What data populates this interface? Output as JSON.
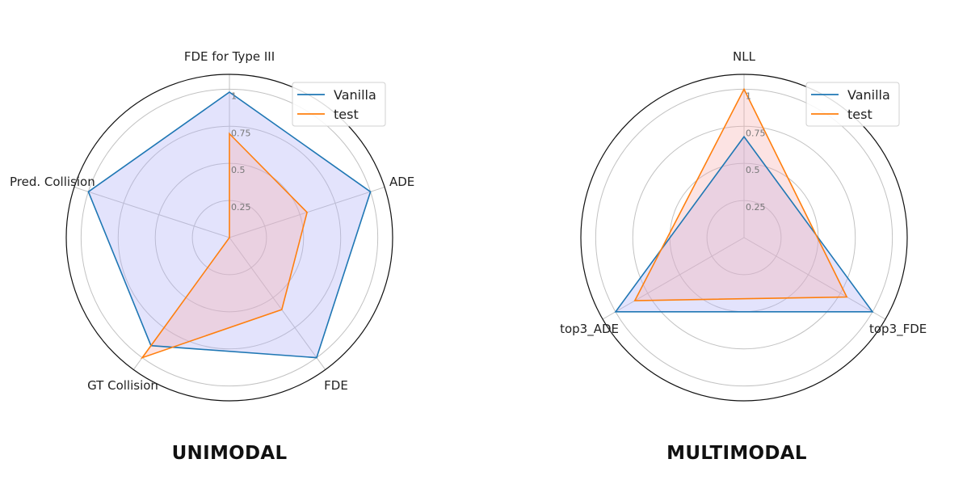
{
  "chart_data": [
    {
      "type": "radar",
      "title": "UNIMODAL",
      "axes": [
        "FDE for Type III",
        "ADE",
        "FDE",
        "GT Collision",
        "Pred. Collision"
      ],
      "r_ticks": [
        "0.25",
        "0.5",
        "0.75",
        "1"
      ],
      "rlim": [
        0,
        1.1
      ],
      "legend_position": "top-right",
      "series": [
        {
          "name": "Vanilla",
          "values": [
            0.98,
            1.0,
            1.0,
            0.9,
            1.0
          ],
          "color": "#1f77b4",
          "fill": "#b0b0f5"
        },
        {
          "name": "test",
          "values": [
            0.7,
            0.55,
            0.6,
            1.0,
            0.0
          ],
          "color": "#ff7f0e",
          "fill": "#f5b0b0"
        }
      ]
    },
    {
      "type": "radar",
      "title": "MULTIMODAL",
      "axes": [
        "NLL",
        "top3_FDE",
        "top3_ADE"
      ],
      "r_ticks": [
        "0.25",
        "0.5",
        "0.75",
        "1"
      ],
      "rlim": [
        0,
        1.1
      ],
      "legend_position": "top-right",
      "series": [
        {
          "name": "Vanilla",
          "values": [
            0.68,
            1.0,
            1.0
          ],
          "color": "#1f77b4",
          "fill": "#b0b0f5"
        },
        {
          "name": "test",
          "values": [
            1.0,
            0.8,
            0.85
          ],
          "color": "#ff7f0e",
          "fill": "#f5b0b0"
        }
      ]
    }
  ]
}
